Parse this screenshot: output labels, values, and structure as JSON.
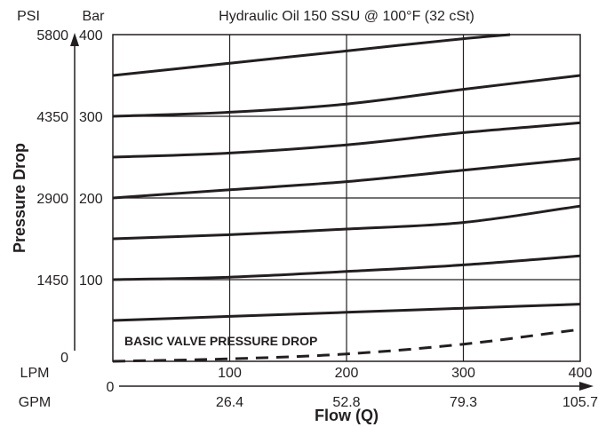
{
  "chart_data": {
    "type": "line",
    "title": "Hydraulic Oil 150 SSU @ 100°F (32 cSt)",
    "xlabel": "Flow (Q)",
    "ylabel": "Pressure Drop",
    "y_unit_psi": "PSI",
    "y_unit_bar": "Bar",
    "x_unit_lpm": "LPM",
    "x_unit_gpm": "GPM",
    "x_gpm_start": "0",
    "xlim": [
      0,
      400
    ],
    "ylim": [
      0,
      400
    ],
    "grid": true,
    "x_ticks_lpm": [
      "100",
      "200",
      "300",
      "400"
    ],
    "x_ticks_gpm": [
      "26.4",
      "52.8",
      "79.3",
      "105.7"
    ],
    "y_ticks_bar": [
      "100",
      "200",
      "300",
      "400"
    ],
    "y_ticks_psi": [
      "0",
      "1450",
      "2900",
      "4350",
      "5800"
    ],
    "annotation": "BASIC VALVE PRESSURE DROP",
    "series": [
      {
        "style": "solid",
        "x": [
          0,
          100,
          200,
          300,
          400
        ],
        "y": [
          50,
          55,
          60,
          65,
          70
        ]
      },
      {
        "style": "solid",
        "x": [
          0,
          100,
          200,
          300,
          400
        ],
        "y": [
          100,
          103,
          110,
          118,
          129
        ]
      },
      {
        "style": "solid",
        "x": [
          0,
          100,
          200,
          300,
          400
        ],
        "y": [
          150,
          155,
          162,
          170,
          190
        ]
      },
      {
        "style": "solid",
        "x": [
          0,
          100,
          200,
          300,
          400
        ],
        "y": [
          200,
          210,
          220,
          234,
          248
        ]
      },
      {
        "style": "solid",
        "x": [
          0,
          100,
          200,
          300,
          400
        ],
        "y": [
          250,
          255,
          265,
          280,
          292
        ]
      },
      {
        "style": "solid",
        "x": [
          0,
          100,
          200,
          300,
          400
        ],
        "y": [
          300,
          305,
          315,
          333,
          350
        ]
      },
      {
        "style": "solid",
        "x": [
          0,
          100,
          200,
          300,
          340
        ],
        "y": [
          350,
          365,
          380,
          395,
          400
        ]
      },
      {
        "style": "dashed",
        "x": [
          0,
          100,
          200,
          300,
          400
        ],
        "y": [
          0,
          3,
          9,
          21,
          39
        ]
      }
    ]
  }
}
